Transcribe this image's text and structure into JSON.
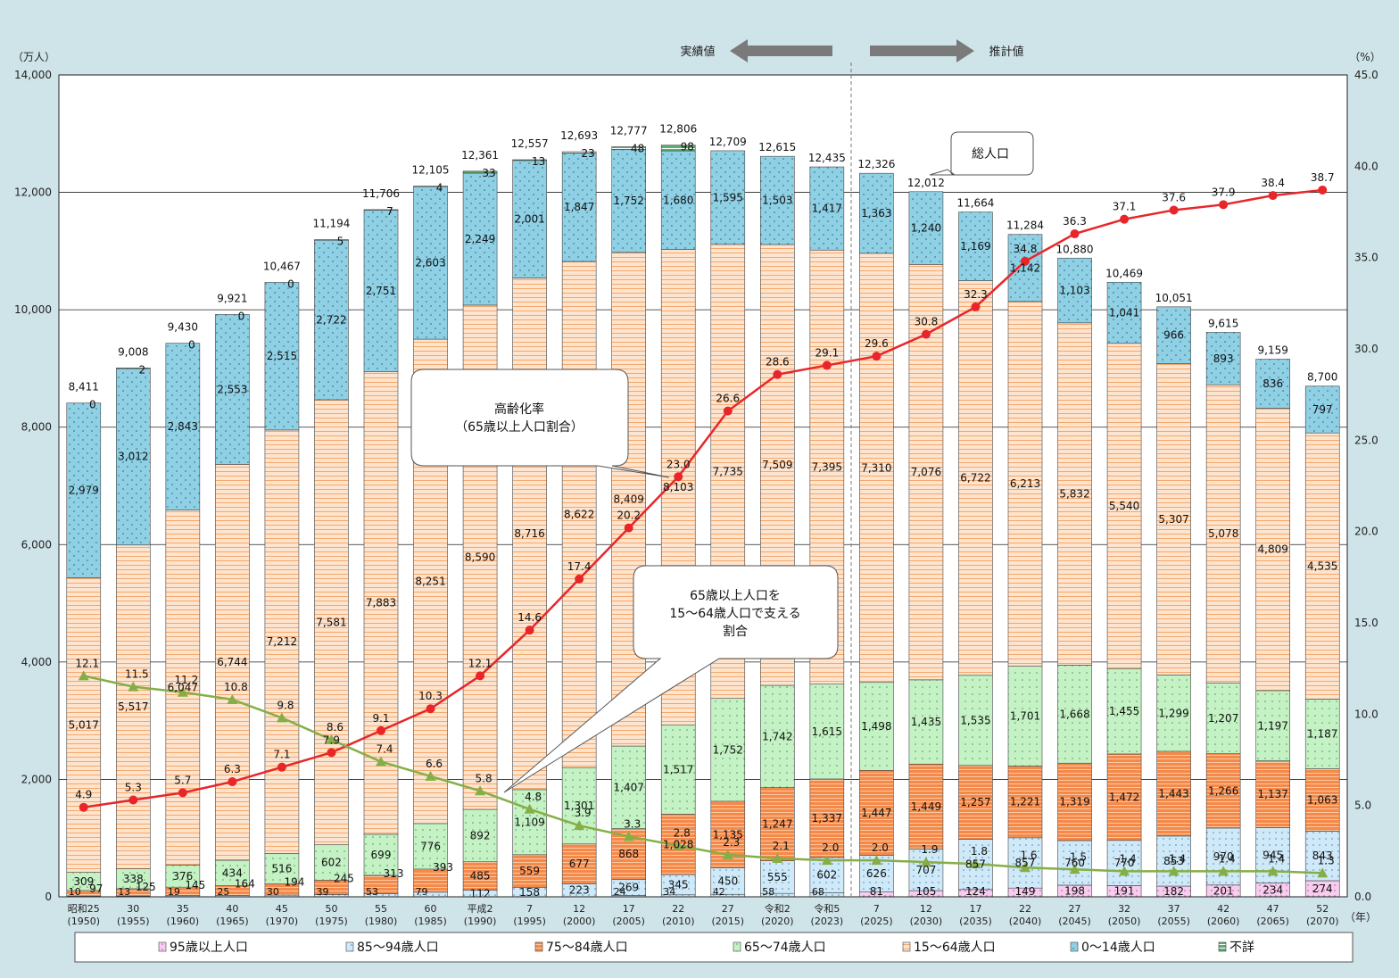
{
  "colors": {
    "age95": "#f7cdee",
    "age85_94": "#cfe9f8",
    "age75_84": "#f5894a",
    "age65_74": "#c4f2c4",
    "age15_64": "#fde4cf",
    "age0_14": "#8fd0e4",
    "unknown": "#56b06e",
    "aging_rate_line": "#e8262a",
    "support_ratio_line": "#86ae46",
    "background": "#cfe4e9"
  },
  "chart_data": {
    "type": "bar",
    "stacked": true,
    "left_axis": {
      "unit": "（万人）",
      "ylim": [
        0,
        14000
      ],
      "ticks": [
        "0",
        "2,000",
        "4,000",
        "6,000",
        "8,000",
        "10,000",
        "12,000",
        "14,000"
      ]
    },
    "right_axis": {
      "unit": "（%）",
      "ylim": [
        0,
        45
      ],
      "ticks": [
        "0.0",
        "5.0",
        "10.0",
        "15.0",
        "20.0",
        "25.0",
        "30.0",
        "35.0",
        "40.0",
        "45.0"
      ]
    },
    "x_unit": "（年）",
    "grid": "horizontal",
    "categories": [
      {
        "era": "昭和25",
        "year": "(1950)"
      },
      {
        "era": "30",
        "year": "(1955)"
      },
      {
        "era": "35",
        "year": "(1960)"
      },
      {
        "era": "40",
        "year": "(1965)"
      },
      {
        "era": "45",
        "year": "(1970)"
      },
      {
        "era": "50",
        "year": "(1975)"
      },
      {
        "era": "55",
        "year": "(1980)"
      },
      {
        "era": "60",
        "year": "(1985)"
      },
      {
        "era": "平成2",
        "year": "(1990)"
      },
      {
        "era": "7",
        "year": "(1995)"
      },
      {
        "era": "12",
        "year": "(2000)"
      },
      {
        "era": "17",
        "year": "(2005)"
      },
      {
        "era": "22",
        "year": "(2010)"
      },
      {
        "era": "27",
        "year": "(2015)"
      },
      {
        "era": "令和2",
        "year": "(2020)"
      },
      {
        "era": "令和5",
        "year": "(2023)"
      },
      {
        "era": "7",
        "year": "(2025)"
      },
      {
        "era": "12",
        "year": "(2030)"
      },
      {
        "era": "17",
        "year": "(2035)"
      },
      {
        "era": "22",
        "year": "(2040)"
      },
      {
        "era": "27",
        "year": "(2045)"
      },
      {
        "era": "32",
        "year": "(2050)"
      },
      {
        "era": "37",
        "year": "(2055)"
      },
      {
        "era": "42",
        "year": "(2060)"
      },
      {
        "era": "47",
        "year": "(2065)"
      },
      {
        "era": "52",
        "year": "(2070)"
      }
    ],
    "series": [
      {
        "name": "95歳以上人口",
        "key": "age95",
        "values": [
          null,
          null,
          null,
          null,
          null,
          null,
          null,
          null,
          null,
          null,
          null,
          null,
          null,
          null,
          null,
          null,
          81,
          105,
          124,
          149,
          198,
          191,
          182,
          201,
          234,
          274
        ]
      },
      {
        "name": "85～94歳人口",
        "key": "age85_94",
        "values": [
          null,
          null,
          null,
          null,
          null,
          null,
          null,
          null,
          112,
          158,
          223,
          269,
          345,
          450,
          555,
          602,
          626,
          707,
          857,
          857,
          760,
          770,
          853,
          970,
          945,
          843
        ]
      },
      {
        "name": "75～84歳人口",
        "key": "age75_84",
        "values": [
          97,
          125,
          145,
          164,
          194,
          245,
          313,
          393,
          485,
          559,
          677,
          868,
          1028,
          1135,
          1247,
          1337,
          1447,
          1449,
          1257,
          1221,
          1319,
          1472,
          1443,
          1266,
          1137,
          1063
        ]
      },
      {
        "name": "65～74歳人口",
        "key": "age65_74",
        "values": [
          309,
          338,
          376,
          434,
          516,
          602,
          699,
          776,
          892,
          1109,
          1301,
          1407,
          1517,
          1752,
          1742,
          1615,
          1498,
          1435,
          1535,
          1701,
          1668,
          1455,
          1299,
          1207,
          1197,
          1187
        ]
      },
      {
        "name": "15～64歳人口",
        "key": "age15_64",
        "values": [
          5017,
          5517,
          6047,
          6744,
          7212,
          7581,
          7883,
          8251,
          8590,
          8716,
          8622,
          8409,
          8103,
          7735,
          7509,
          7395,
          7310,
          7076,
          6722,
          6213,
          5832,
          5540,
          5307,
          5078,
          4809,
          4535
        ]
      },
      {
        "name": "0～14歳人口",
        "key": "age0_14",
        "values": [
          2979,
          3012,
          2843,
          2553,
          2515,
          2722,
          2751,
          2603,
          2249,
          2001,
          1847,
          1752,
          1680,
          1595,
          1503,
          1417,
          1363,
          1240,
          1169,
          1142,
          1103,
          1041,
          966,
          893,
          836,
          797
        ]
      },
      {
        "name": "不詳",
        "key": "unknown",
        "values": [
          0,
          2,
          0,
          0,
          0,
          5,
          7,
          4,
          33,
          13,
          23,
          48,
          98,
          null,
          null,
          null,
          null,
          null,
          null,
          null,
          null,
          null,
          null,
          null,
          null,
          null
        ]
      }
    ],
    "bottom_extra": {
      "description_values_85plus": [
        10,
        13,
        19,
        25,
        30,
        39,
        53,
        79,
        null,
        null,
        null,
        24,
        34,
        42,
        58,
        68,
        null,
        null,
        null,
        null,
        null,
        null,
        null,
        null,
        null,
        null
      ],
      "values": [
        "10",
        "13",
        "19",
        "25",
        "30",
        "39",
        "53",
        "79",
        "",
        "",
        "",
        "24",
        "34",
        "42",
        "58",
        "68",
        "",
        "",
        "",
        "",
        "",
        "",
        "",
        "",
        "",
        ""
      ]
    },
    "totals": [
      "8,411",
      "9,008",
      "9,430",
      "9,921",
      "10,467",
      "11,194",
      "11,706",
      "12,105",
      "12,361",
      "12,557",
      "12,693",
      "12,777",
      "12,806",
      "12,709",
      "12,615",
      "12,435",
      "12,326",
      "12,012",
      "11,664",
      "11,284",
      "10,880",
      "10,469",
      "10,051",
      "9,615",
      "9,159",
      "8,700"
    ],
    "lines": [
      {
        "name": "高齢化率（65歳以上人口割合）",
        "axis": "right",
        "key": "aging_rate_line",
        "values": [
          4.9,
          5.3,
          5.7,
          6.3,
          7.1,
          7.9,
          9.1,
          10.3,
          12.1,
          14.6,
          17.4,
          20.2,
          23.0,
          26.6,
          28.6,
          29.1,
          29.6,
          30.8,
          32.3,
          34.8,
          36.3,
          37.1,
          37.6,
          37.9,
          38.4,
          38.7
        ]
      },
      {
        "name": "65歳以上人口を15～64歳人口で支える割合",
        "axis": "right",
        "key": "support_ratio_line",
        "values": [
          12.1,
          11.5,
          11.2,
          10.8,
          9.8,
          8.6,
          7.4,
          6.6,
          5.8,
          4.8,
          3.9,
          3.3,
          2.8,
          2.3,
          2.1,
          2.0,
          2.0,
          1.9,
          1.8,
          1.6,
          1.5,
          1.4,
          1.4,
          1.4,
          1.4,
          1.3
        ]
      }
    ],
    "annotations": {
      "actual_label": "実績値",
      "projection_label": "推計値",
      "total_callout": "総人口",
      "aging_callout_line1": "高齢化率",
      "aging_callout_line2": "（65歳以上人口割合）",
      "support_callout_line1": "65歳以上人口を",
      "support_callout_line2": "15～64歳人口で支える",
      "support_callout_line3": "割合"
    },
    "legend": [
      "95歳以上人口",
      "85～94歳人口",
      "75～84歳人口",
      "65～74歳人口",
      "15～64歳人口",
      "0～14歳人口",
      "不詳"
    ],
    "legend_position": "bottom"
  }
}
